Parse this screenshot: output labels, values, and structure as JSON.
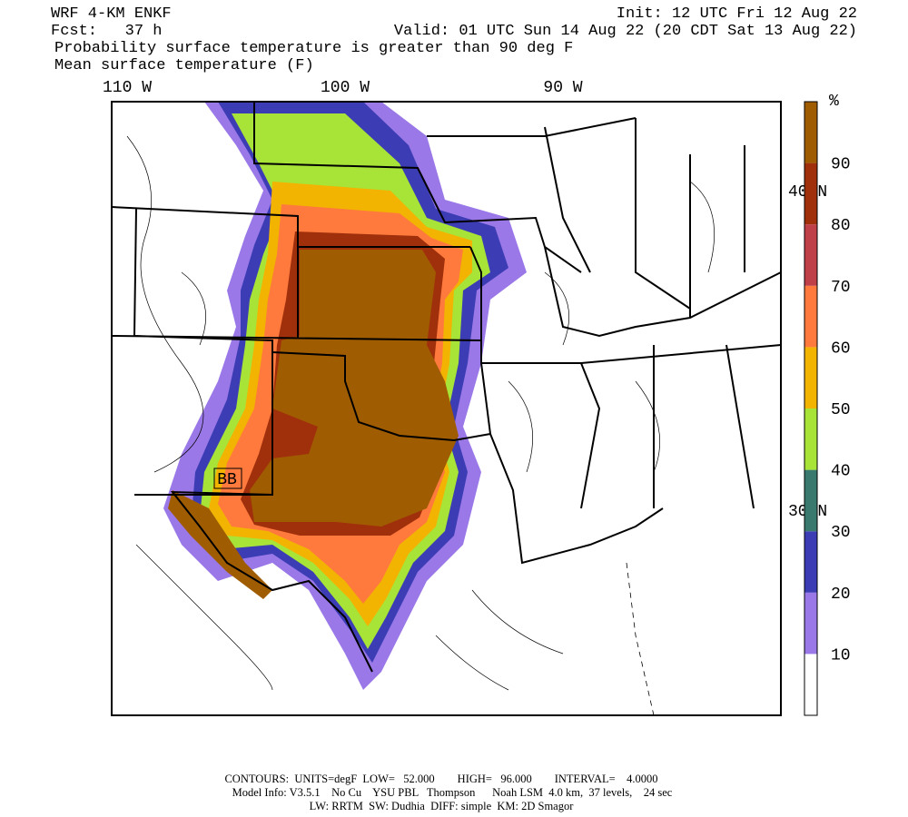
{
  "header": {
    "title": "WRF 4-KM ENKF",
    "forecast": "Fcst:   37 h",
    "init": "Init: 12 UTC Fri 12 Aug 22",
    "valid": "Valid: 01 UTC Sun 14 Aug 22 (20 CDT Sat 13 Aug 22)",
    "field_fill": "Probability surface temperature is greater than 90 deg F",
    "field_contour": "Mean surface temperature (F)"
  },
  "map": {
    "longitude_labels": [
      "110 W",
      "100 W",
      "90 W"
    ],
    "latitude_labels": [
      "40 N",
      "30 N"
    ],
    "station_label": "BB"
  },
  "colorbar": {
    "unit": "%",
    "levels": [
      10,
      20,
      30,
      40,
      50,
      60,
      70,
      80,
      90
    ],
    "colors": [
      "#ffffff",
      "#9a78e8",
      "#3c3cb4",
      "#3a7a6e",
      "#a8e438",
      "#f2b400",
      "#ff7a3c",
      "#c0404a",
      "#a0300c",
      "#a05c00"
    ]
  },
  "footer": {
    "contours": "CONTOURS:  UNITS=degF  LOW=   52.000        HIGH=   96.000        INTERVAL=    4.0000",
    "model_info": "Model Info: V3.5.1    No Cu    YSU PBL   Thompson      Noah LSM  4.0 km,  37 levels,    24 sec",
    "physics": "LW: RRTM  SW: Dudhia  DIFF: simple  KM: 2D Smagor"
  }
}
